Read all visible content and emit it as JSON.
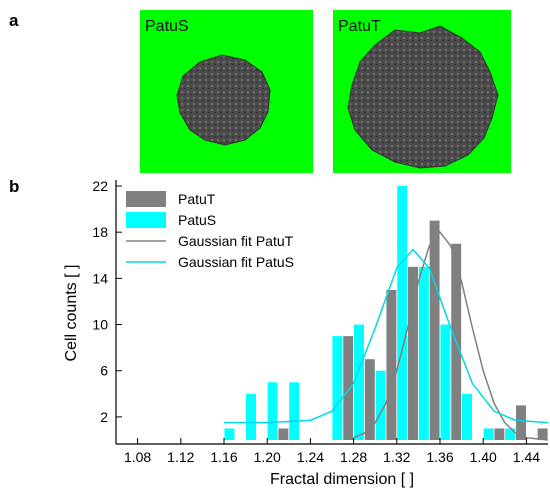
{
  "panel_labels": [
    "a",
    "b"
  ],
  "images": [
    {
      "label": "PatuS"
    },
    {
      "label": "PatuT"
    }
  ],
  "chart_data": {
    "type": "bar",
    "x_label": "Fractal dimension [ ]",
    "y_label": "Cell counts [ ]",
    "x": [
      1.17,
      1.19,
      1.21,
      1.23,
      1.25,
      1.27,
      1.29,
      1.31,
      1.33,
      1.35,
      1.37,
      1.39,
      1.41,
      1.43,
      1.45
    ],
    "series": [
      {
        "name": "PatuT",
        "type": "bar",
        "color": "#808080",
        "offset": 1,
        "values": [
          0,
          0,
          1,
          0,
          0,
          9,
          7,
          13,
          15,
          19,
          17,
          0,
          1,
          3,
          1
        ]
      },
      {
        "name": "PatuS",
        "type": "bar",
        "color": "#00ffff",
        "offset": -1,
        "values": [
          1,
          4,
          5,
          5,
          0,
          9,
          10,
          6,
          22,
          15,
          10,
          4,
          1,
          1,
          0
        ]
      },
      {
        "name": "Gaussian fit PatuT",
        "type": "line",
        "color": "#808080",
        "x": [
          1.28,
          1.29,
          1.3,
          1.31,
          1.32,
          1.33,
          1.34,
          1.35,
          1.36,
          1.37,
          1.38,
          1.39,
          1.4,
          1.41,
          1.42,
          1.43,
          1.44,
          1.45,
          1.46
        ],
        "values": [
          0.2,
          0.6,
          1.5,
          3.2,
          6.0,
          9.7,
          13.7,
          16.8,
          18,
          16.8,
          13.7,
          9.7,
          6.0,
          3.2,
          1.5,
          0.6,
          0.2,
          0.1,
          0
        ]
      },
      {
        "name": "Gaussian fit PatuS",
        "type": "line",
        "color": "#00d8e8",
        "x": [
          1.16,
          1.2,
          1.24,
          1.26,
          1.28,
          1.3,
          1.32,
          1.335,
          1.35,
          1.37,
          1.39,
          1.41,
          1.43,
          1.46
        ],
        "values": [
          1.5,
          1.5,
          1.7,
          2.5,
          4.9,
          9.7,
          14.9,
          16.5,
          14.9,
          9.7,
          4.9,
          2.5,
          1.7,
          1.5
        ]
      }
    ],
    "xlim": [
      1.06,
      1.46
    ],
    "ylim": [
      0,
      22
    ],
    "xticks": [
      1.08,
      1.12,
      1.16,
      {
        "value": 1.2,
        "label": "1.20"
      },
      1.24,
      1.28,
      1.32,
      1.36,
      {
        "value": 1.4,
        "label": "1.40"
      },
      1.44
    ],
    "yticks": [
      2,
      6,
      10,
      14,
      18,
      22
    ],
    "bin_width": 0.02,
    "legend": "upper left"
  }
}
